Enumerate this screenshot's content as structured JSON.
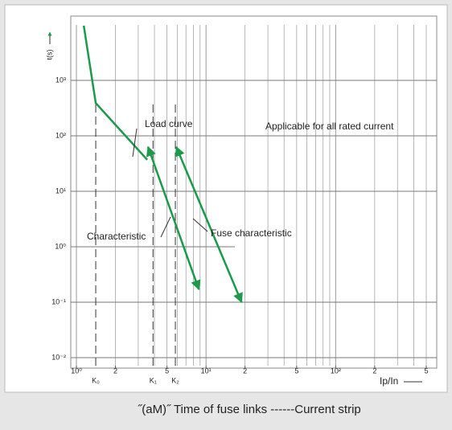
{
  "chart_data": {
    "type": "line",
    "xlog": true,
    "ylog": true,
    "grid": true,
    "xlabel": "Ip/In",
    "ylabel": "t(s)",
    "caption": "˝(aM)˝ Time of fuse links ------Current strip",
    "xlim": [
      1,
      500
    ],
    "ylim": [
      0.01,
      10000
    ],
    "xticks": [
      {
        "value": 1,
        "label": "10⁰"
      },
      2,
      5,
      {
        "value": 10,
        "label": "10¹"
      },
      {
        "value": 20,
        "label": "2"
      },
      {
        "value": 50,
        "label": "5"
      },
      {
        "value": 100,
        "label": "10²"
      },
      {
        "value": 200,
        "label": "2"
      },
      {
        "value": 500,
        "label": "5"
      }
    ],
    "yticks": [
      {
        "value": 0.01,
        "label": "10⁻²"
      },
      {
        "value": 0.1,
        "label": "10⁻¹"
      },
      {
        "value": 1,
        "label": "10⁰"
      },
      {
        "value": 10,
        "label": "10¹"
      },
      {
        "value": 100,
        "label": "10²"
      },
      {
        "value": 1000,
        "label": "10³"
      }
    ],
    "kmarks": [
      {
        "value": 1.41,
        "label": "K₀"
      },
      {
        "value": 3.9,
        "label": "K₁"
      },
      {
        "value": 5.8,
        "label": "K₂"
      }
    ],
    "series": [
      {
        "name": "Load curve",
        "color": "#1a9a4a",
        "x": [
          1.14,
          1.41,
          3.52
        ],
        "values": [
          9700,
          390,
          37
        ]
      },
      {
        "name": "Characteristic",
        "color": "#1a9a4a",
        "x": [
          3.57,
          8.8
        ],
        "values": [
          63,
          0.17
        ]
      },
      {
        "name": "Fuse characteristic",
        "color": "#1a9a4a",
        "x": [
          5.9,
          18.8
        ],
        "values": [
          63,
          0.1
        ]
      }
    ],
    "annotation": "Applicable for all rated current"
  }
}
